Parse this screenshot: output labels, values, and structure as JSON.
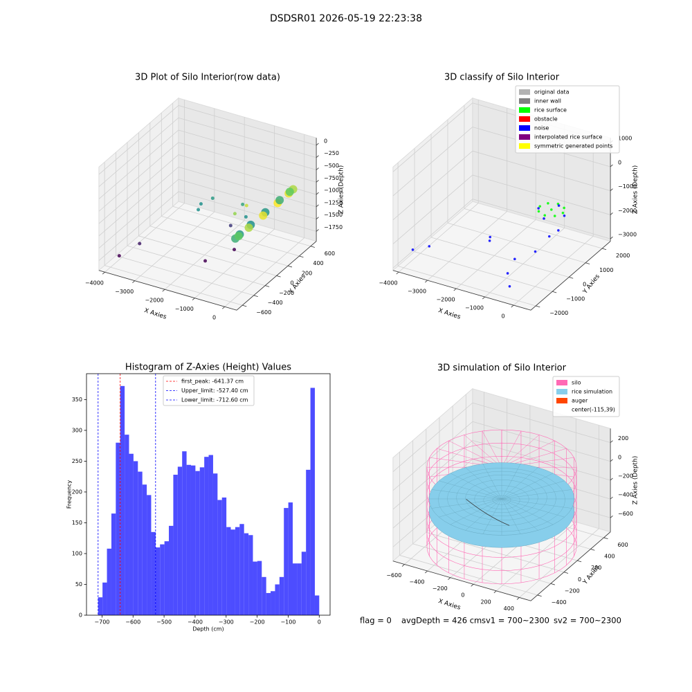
{
  "title": "DSDSR01 2026-05-19 22:23:38",
  "footer": [
    "flag = 0",
    "avgDepth = 426 cm",
    "sv1 = 700~2300",
    "sv2 = 700~2300"
  ],
  "chart_data": [
    {
      "type": "scatter3d",
      "title": "3D Plot of Silo Interior(row data)",
      "xlabel": "X Axies",
      "ylabel": "Y Axies",
      "zlabel": "Z Axies (Depth)",
      "xlim": [
        -4200,
        400
      ],
      "ylim": [
        -700,
        700
      ],
      "zlim": [
        -1950,
        150
      ],
      "xticks": [
        {
          "value": -4000,
          "label": "−4000"
        },
        {
          "value": -3000,
          "label": "−3000"
        },
        {
          "value": -2000,
          "label": "−2000"
        },
        {
          "value": -1000,
          "label": "−1000"
        },
        0
      ],
      "yticks": [
        {
          "value": -600,
          "label": "−600"
        },
        {
          "value": -400,
          "label": "−400"
        },
        {
          "value": -200,
          "label": "−200"
        },
        0,
        200,
        400,
        600
      ],
      "zticks": [
        0,
        {
          "value": -250,
          "label": "−250"
        },
        {
          "value": -500,
          "label": "−500"
        },
        {
          "value": -750,
          "label": "−750"
        },
        {
          "value": -1000,
          "label": "−1000"
        },
        {
          "value": -1250,
          "label": "−1250"
        },
        {
          "value": -1500,
          "label": "−1500"
        },
        {
          "value": -1750,
          "label": "−1750"
        }
      ],
      "colormap": "viridis",
      "series": [
        {
          "x": [
            -3900,
            -3600,
            -1600,
            -1200,
            -1700,
            -2500,
            -2300,
            -2400,
            -1300,
            -1000,
            -800,
            -600,
            250,
            190,
            25,
            -200,
            -425,
            -590,
            -650,
            -590,
            -425,
            -200,
            25,
            190
          ],
          "y": [
            -500,
            -300,
            -200,
            100,
            300,
            200,
            300,
            100,
            300,
            200,
            -100,
            0,
            100,
            325,
            490,
            550,
            490,
            325,
            100,
            -125,
            -290,
            -350,
            -290,
            -125
          ],
          "z": [
            -1800,
            -1700,
            -1800,
            -1800,
            -1600,
            -1200,
            -1150,
            -1200,
            -1100,
            -1200,
            -800,
            -700,
            -600,
            -640,
            -750,
            -900,
            -1050,
            -1160,
            -1200,
            -1160,
            -1050,
            -900,
            -750,
            -640
          ]
        }
      ]
    },
    {
      "type": "scatter3d",
      "title": "3D classify of Silo Interior",
      "xlabel": "X Axies",
      "ylabel": "Y Axies",
      "zlabel": "Z Axies (Depth)",
      "xlim": [
        -4200,
        600
      ],
      "ylim": [
        -2300,
        2500
      ],
      "zlim": [
        -3100,
        1200
      ],
      "xticks": [
        {
          "value": -4000,
          "label": "−4000"
        },
        {
          "value": -3000,
          "label": "−3000"
        },
        {
          "value": -2000,
          "label": "−2000"
        },
        {
          "value": -1000,
          "label": "−1000"
        },
        0
      ],
      "yticks": [
        {
          "value": -2000,
          "label": "−2000"
        },
        {
          "value": -1000,
          "label": "−1000"
        },
        0,
        1000,
        2000
      ],
      "zticks": [
        {
          "value": -3000,
          "label": "−3000"
        },
        {
          "value": -2000,
          "label": "−2000"
        },
        {
          "value": -1000,
          "label": "−1000"
        },
        0,
        1000
      ],
      "legend": "upper right",
      "series": [
        {
          "name": "original data",
          "color": "#b3b3b3"
        },
        {
          "name": "inner wall",
          "color": "#808080"
        },
        {
          "name": "rice surface",
          "color": "#00ff00",
          "x": [
            -300,
            100,
            -700,
            -300,
            -300,
            -20,
            -580,
            -20,
            -580
          ],
          "y": [
            500,
            500,
            500,
            900,
            100,
            780,
            780,
            220,
            220
          ],
          "z": [
            -900,
            -900,
            -900,
            -900,
            -900,
            -900,
            -900,
            -900,
            -900
          ]
        },
        {
          "name": "obstacle",
          "color": "#ff0000"
        },
        {
          "name": "noise",
          "color": "#0000ff",
          "x": [
            -3800,
            -3400,
            -1800,
            -1700,
            -1000,
            -900,
            -600,
            -400,
            -200,
            0,
            150,
            -750,
            -300,
            -300
          ],
          "y": [
            -1800,
            -1500,
            -600,
            -800,
            -500,
            -1100,
            -1500,
            -300,
            200,
            400,
            500,
            500,
            950,
            50
          ],
          "z": [
            -2400,
            -2300,
            -1900,
            -1900,
            -2600,
            -2800,
            -3000,
            -2200,
            -1800,
            -1600,
            -1000,
            -1000,
            -1000,
            -1000
          ]
        },
        {
          "name": "interpolated rice surface",
          "color": "#800080"
        },
        {
          "name": "symmetric generated points",
          "color": "#ffff00"
        }
      ]
    },
    {
      "type": "histogram",
      "title": "Histogram of Z-Axies (Height) Values",
      "xlabel": "Depth (cm)",
      "ylabel": "Frequency",
      "color": "#4d4dff",
      "xlim": [
        -750,
        35
      ],
      "ylim": [
        0,
        392
      ],
      "xticks": [
        {
          "value": -700,
          "label": "−700"
        },
        {
          "value": -600,
          "label": "−600"
        },
        {
          "value": -500,
          "label": "−500"
        },
        {
          "value": -400,
          "label": "−400"
        },
        {
          "value": -300,
          "label": "−300"
        },
        {
          "value": -200,
          "label": "−200"
        },
        {
          "value": -100,
          "label": "−100"
        },
        0
      ],
      "yticks": [
        0,
        50,
        100,
        150,
        200,
        250,
        300,
        350
      ],
      "bins": [
        -712.6,
        -698.4,
        -684.1,
        -669.8,
        -655.6,
        -641.4,
        -627.1,
        -612.9,
        -598.6,
        -584.4,
        -570.1,
        -555.8,
        -541.6,
        -527.3,
        -513.1,
        -498.8,
        -484.6,
        -470.3,
        -456.0,
        -441.8,
        -427.5,
        -413.3,
        -399.0,
        -384.8,
        -370.5,
        -356.3,
        -342.0,
        -327.7,
        -313.5,
        -299.2,
        -285.0,
        -270.7,
        -256.5,
        -242.2,
        -227.9,
        -213.7,
        -199.4,
        -185.2,
        -170.9,
        -156.7,
        -142.4,
        -128.1,
        -113.9,
        -99.6,
        -85.4,
        -71.1,
        -56.9,
        -42.6,
        -28.4,
        -14.1,
        0
      ],
      "counts": [
        29,
        53,
        108,
        165,
        280,
        372,
        293,
        262,
        250,
        233,
        212,
        195,
        135,
        110,
        115,
        120,
        145,
        228,
        241,
        266,
        244,
        243,
        234,
        240,
        257,
        260,
        230,
        187,
        191,
        143,
        139,
        143,
        148,
        133,
        130,
        87,
        88,
        62,
        36,
        39,
        50,
        62,
        174,
        183,
        84,
        84,
        103,
        236,
        369,
        32
      ],
      "vlines": [
        {
          "name": "first_peak: -641.37 cm",
          "value": -641.37,
          "color": "#ff0000"
        },
        {
          "name": "Upper_limit: -527.40 cm",
          "value": -527.4,
          "color": "#0000ff"
        },
        {
          "name": "Lower_limit: -712.60 cm",
          "value": -712.6,
          "color": "#0000ff"
        }
      ]
    },
    {
      "type": "surface3d",
      "title": "3D simulation of Silo Interior",
      "xlabel": "X Axies",
      "ylabel": "Y Axies",
      "zlabel": "Z Axies (Depth)",
      "xlim": [
        -700,
        500
      ],
      "ylim": [
        -500,
        700
      ],
      "zlim": [
        -750,
        350
      ],
      "xticks": [
        {
          "value": -600,
          "label": "−600"
        },
        {
          "value": -400,
          "label": "−400"
        },
        {
          "value": -200,
          "label": "−200"
        },
        0,
        200,
        400
      ],
      "yticks": [
        {
          "value": -400,
          "label": "−400"
        },
        {
          "value": -200,
          "label": "−200"
        },
        0,
        200,
        400,
        600
      ],
      "zticks": [
        {
          "value": -600,
          "label": "−600"
        },
        {
          "value": -400,
          "label": "−400"
        },
        {
          "value": -200,
          "label": "−200"
        },
        0,
        200
      ],
      "legend": "upper right",
      "series": [
        {
          "name": "silo",
          "color": "#ff69b4"
        },
        {
          "name": "rice simulation",
          "color": "#87ceeb"
        },
        {
          "name": "auger",
          "color": "#ff4500"
        },
        {
          "name": "center(-115,39)",
          "color": "#ffffff"
        }
      ]
    }
  ]
}
